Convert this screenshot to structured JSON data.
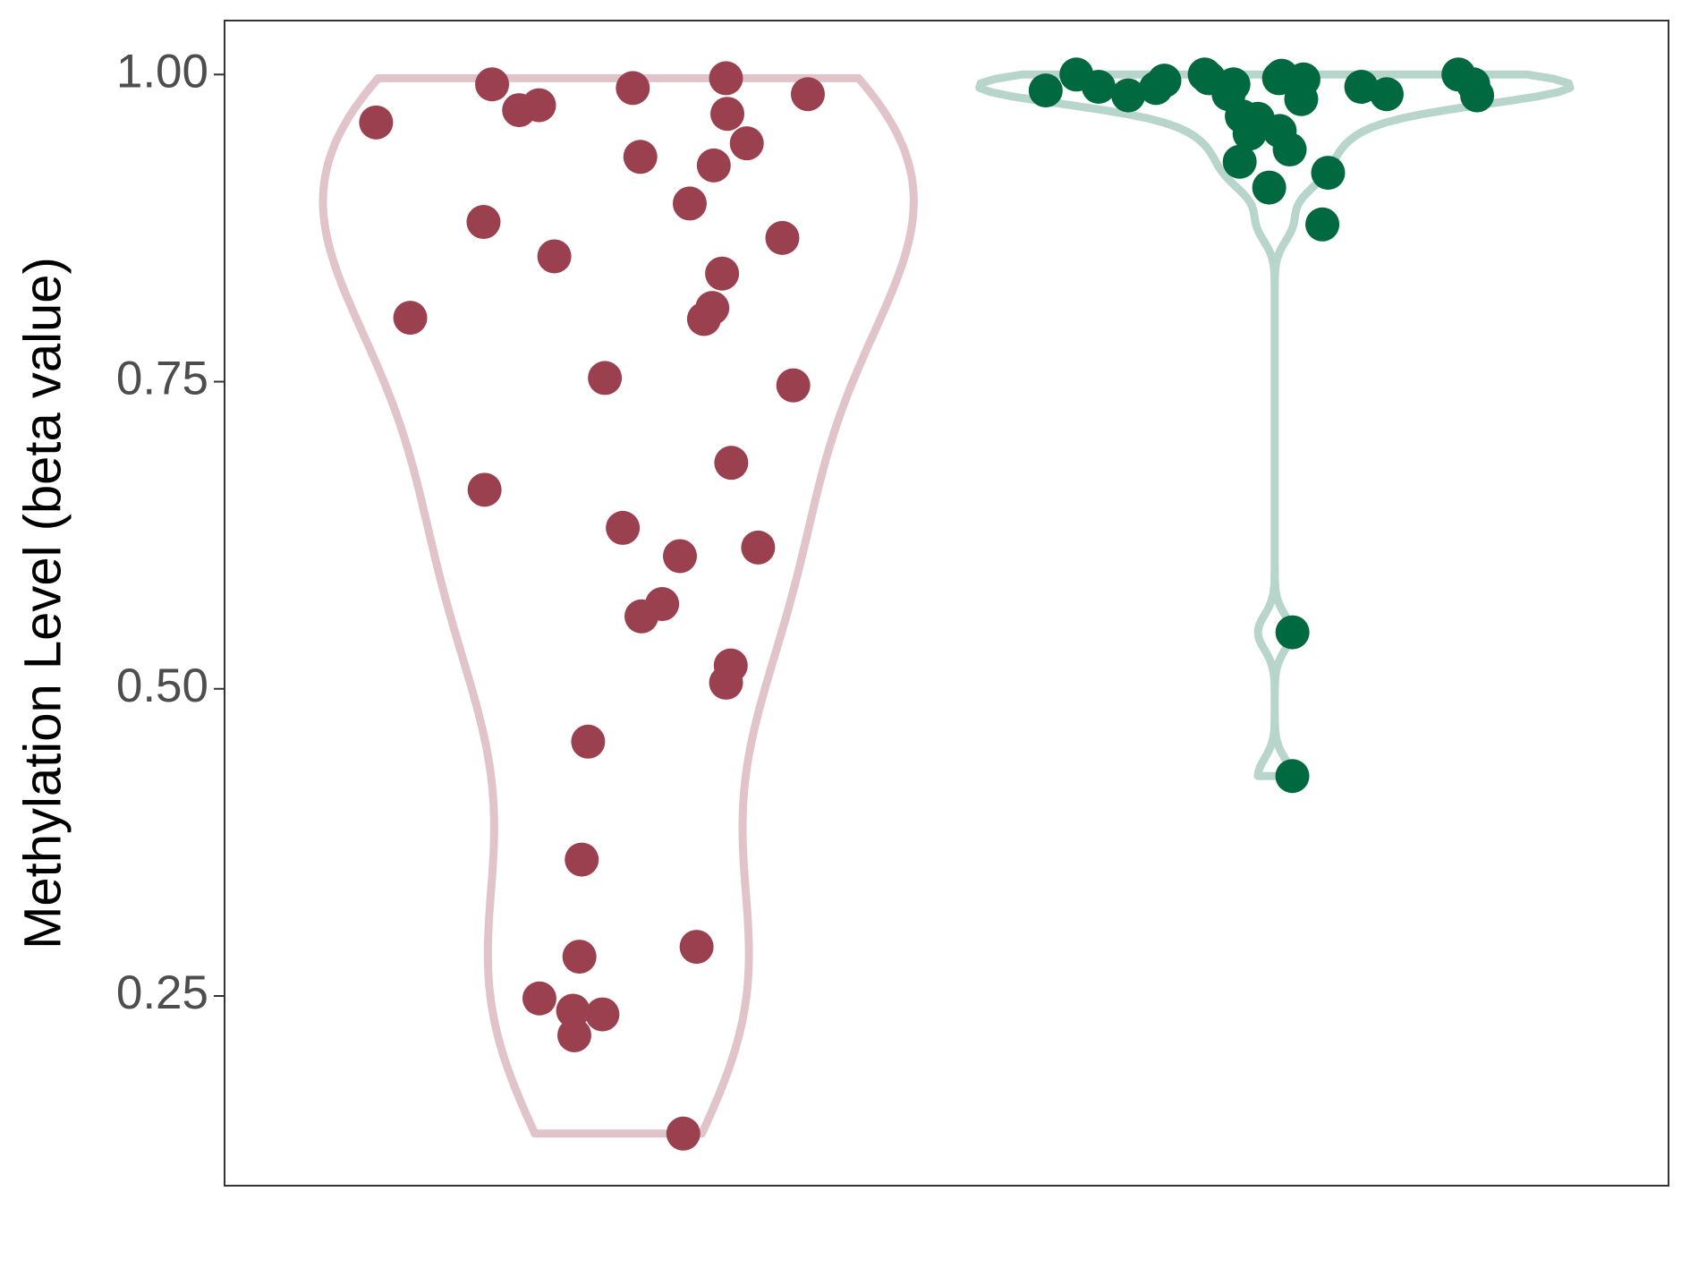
{
  "chart_data": {
    "type": "violin",
    "y_label": "Methylation Level (beta value)",
    "ylim": [
      0.0956,
      1.0439
    ],
    "yticks": [
      0.25,
      {
        "value": 0.5,
        "label": "0.50"
      },
      0.75,
      {
        "value": 1.0,
        "label": "1.00"
      }
    ],
    "grid": false,
    "series": [
      {
        "color": "#9a404e",
        "outline_color": "#e0c4ca",
        "values": [
          0.961,
          0.984,
          0.971,
          0.992,
          0.968,
          0.989,
          0.975,
          0.997,
          0.944,
          0.933,
          0.926,
          0.895,
          0.867,
          0.88,
          0.852,
          0.838,
          0.81,
          0.802,
          0.801,
          0.753,
          0.747,
          0.684,
          0.662,
          0.631,
          0.615,
          0.608,
          0.569,
          0.559,
          0.519,
          0.505,
          0.457,
          0.361,
          0.29,
          0.282,
          0.248,
          0.238,
          0.235,
          0.218,
          0.138
        ]
      },
      {
        "color": "#006940",
        "outline_color": "#b7d5cb",
        "values": [
          0.996,
          0.984,
          0.992,
          1.0,
          0.989,
          0.98,
          0.997,
          0.992,
          0.983,
          1.0,
          0.987,
          0.997,
          1.0,
          0.99,
          0.983,
          0.999,
          0.99,
          0.984,
          0.995,
          0.966,
          0.964,
          0.952,
          0.954,
          0.939,
          0.929,
          0.92,
          0.908,
          0.878,
          0.546,
          0.429
        ]
      }
    ]
  }
}
